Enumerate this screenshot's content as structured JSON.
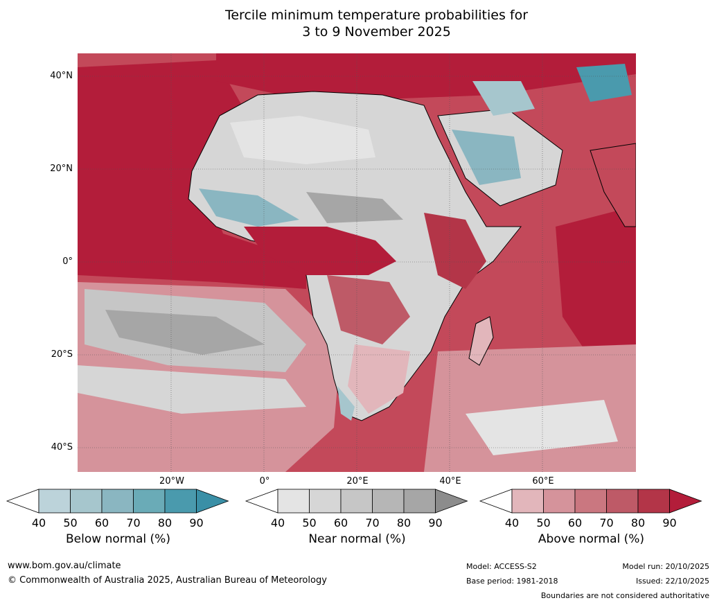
{
  "title": {
    "line1": "Tercile minimum temperature probabilities for",
    "line2": "3 to 9 November 2025"
  },
  "map": {
    "lat_labels": [
      "40°N",
      "20°N",
      "0°",
      "20°S",
      "40°S"
    ],
    "lon_labels": [
      "20°W",
      "0°",
      "20°E",
      "40°E",
      "60°E"
    ],
    "region": "Africa, Middle East and surrounding oceans"
  },
  "legends": [
    {
      "title": "Below normal (%)",
      "ticks": [
        "40",
        "50",
        "60",
        "70",
        "80",
        "90"
      ],
      "colors": [
        "#ffffff",
        "#bcd3da",
        "#a6c6cd",
        "#8ab6c1",
        "#6aabb7",
        "#4a9aad",
        "#3a8fa6"
      ]
    },
    {
      "title": "Near normal (%)",
      "ticks": [
        "40",
        "50",
        "60",
        "70",
        "80",
        "90"
      ],
      "colors": [
        "#ffffff",
        "#e4e4e4",
        "#d6d6d6",
        "#c6c6c6",
        "#b6b6b6",
        "#a6a6a6",
        "#8c8c8c"
      ]
    },
    {
      "title": "Above normal (%)",
      "ticks": [
        "40",
        "50",
        "60",
        "70",
        "80",
        "90"
      ],
      "colors": [
        "#ffffff",
        "#e2b6bb",
        "#d5939b",
        "#ca7780",
        "#be5a67",
        "#b33548",
        "#b31d3a"
      ]
    }
  ],
  "footer": {
    "url": "www.bom.gov.au/climate",
    "copyright": "© Commonwealth of Australia 2025, Australian Bureau of Meteorology",
    "model": "Model: ACCESS-S2",
    "base_period": "Base period: 1981-2018",
    "model_run": "Model run: 20/10/2025",
    "issued": "Issued: 22/10/2025",
    "disclaimer": "Boundaries are not considered authoritative"
  }
}
